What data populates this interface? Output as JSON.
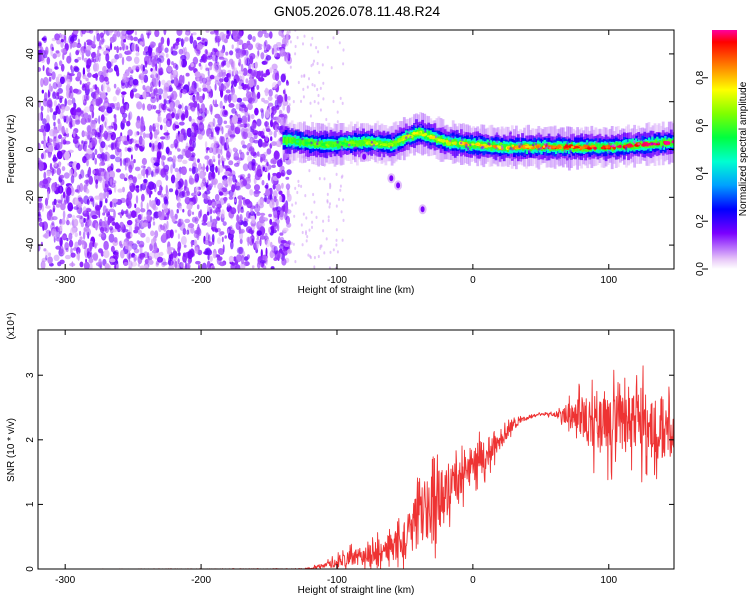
{
  "title": "GN05.2026.078.11.48.R24",
  "chart_data": [
    {
      "type": "heatmap",
      "xlabel": "Height of straight line (km)",
      "ylabel": "Frequency (Hz)",
      "xlim": [
        -320,
        148
      ],
      "ylim": [
        -50,
        50
      ],
      "xticks": [
        -300,
        -200,
        -100,
        0,
        100
      ],
      "xtick_labels": [
        "-300",
        "-200",
        "-100",
        "0",
        "100"
      ],
      "yticks": [
        -40,
        -20,
        0,
        20,
        40
      ],
      "ytick_labels": [
        "-40",
        "-20",
        "0",
        "20",
        "40"
      ],
      "noise_region_x": [
        -320,
        -135
      ],
      "signal_start_x": -140,
      "ridge_profile": [
        {
          "x": -140,
          "f": 4
        },
        {
          "x": -110,
          "f": 2
        },
        {
          "x": -80,
          "f": 3
        },
        {
          "x": -60,
          "f": 2
        },
        {
          "x": -50,
          "f": 5
        },
        {
          "x": -40,
          "f": 7
        },
        {
          "x": -30,
          "f": 5
        },
        {
          "x": -20,
          "f": 3
        },
        {
          "x": 0,
          "f": 2
        },
        {
          "x": 20,
          "f": 1
        },
        {
          "x": 60,
          "f": 1
        },
        {
          "x": 100,
          "f": 1
        },
        {
          "x": 148,
          "f": 3
        }
      ],
      "isolated_blobs": [
        {
          "x": -80,
          "f": -3
        },
        {
          "x": -60,
          "f": -12
        },
        {
          "x": -55,
          "f": -15
        },
        {
          "x": -37,
          "f": -25
        }
      ],
      "colorbar": {
        "label": "Normalized spectral amplitude",
        "range": [
          0,
          1
        ],
        "ticks": [
          0.0,
          0.2,
          0.4,
          0.6,
          0.8
        ],
        "tick_labels": [
          "0.0",
          "0.2",
          "0.4",
          "0.6",
          "0.8"
        ]
      }
    },
    {
      "type": "line",
      "xlabel": "Height of straight line (km)",
      "ylabel": "SNR (10 * v/v)",
      "multiplier": "(x10⁴)",
      "xlim": [
        -320,
        148
      ],
      "ylim": [
        0,
        3.7
      ],
      "xticks": [
        -300,
        -200,
        -100,
        0,
        100
      ],
      "xtick_labels": [
        "-300",
        "-200",
        "-100",
        "0",
        "100"
      ],
      "yticks": [
        0,
        1,
        2,
        3
      ],
      "ytick_labels": [
        "0",
        "1",
        "2",
        "3"
      ],
      "series": [
        {
          "name": "SNR",
          "color": "#ee3333",
          "envelope": [
            {
              "x": -320,
              "mean": 0.0,
              "spread": 0.0
            },
            {
              "x": -125,
              "mean": 0.0,
              "spread": 0.01
            },
            {
              "x": -110,
              "mean": 0.04,
              "spread": 0.06
            },
            {
              "x": -95,
              "mean": 0.15,
              "spread": 0.2
            },
            {
              "x": -80,
              "mean": 0.2,
              "spread": 0.25
            },
            {
              "x": -65,
              "mean": 0.3,
              "spread": 0.35
            },
            {
              "x": -50,
              "mean": 0.45,
              "spread": 0.5
            },
            {
              "x": -38,
              "mean": 0.9,
              "spread": 0.9
            },
            {
              "x": -28,
              "mean": 1.0,
              "spread": 1.0
            },
            {
              "x": -15,
              "mean": 1.3,
              "spread": 0.6
            },
            {
              "x": -5,
              "mean": 1.5,
              "spread": 0.5
            },
            {
              "x": 5,
              "mean": 1.7,
              "spread": 0.5
            },
            {
              "x": 20,
              "mean": 2.0,
              "spread": 0.3
            },
            {
              "x": 30,
              "mean": 2.25,
              "spread": 0.12
            },
            {
              "x": 45,
              "mean": 2.38,
              "spread": 0.04
            },
            {
              "x": 60,
              "mean": 2.4,
              "spread": 0.05
            },
            {
              "x": 72,
              "mean": 2.4,
              "spread": 0.35
            },
            {
              "x": 90,
              "mean": 2.3,
              "spread": 0.9
            },
            {
              "x": 110,
              "mean": 2.2,
              "spread": 0.9
            },
            {
              "x": 130,
              "mean": 2.25,
              "spread": 0.95
            },
            {
              "x": 148,
              "mean": 2.1,
              "spread": 1.0
            }
          ]
        }
      ]
    }
  ]
}
